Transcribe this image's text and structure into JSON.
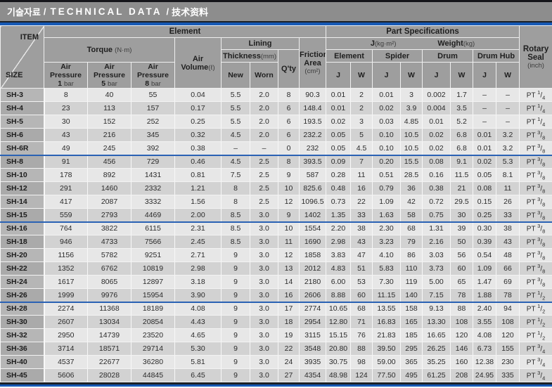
{
  "title": {
    "ko": "기술자료",
    "sep": "/",
    "en": "TECHNICAL DATA",
    "zh": "技术资料"
  },
  "colors": {
    "accent_blue": "#1659b5",
    "header_gray": "#9e9e9e",
    "title_gray": "#8d8d8d",
    "row_light": "#e7e7e7",
    "row_dark": "#d2d2d2"
  },
  "table": {
    "header": {
      "item": "ITEM",
      "size": "SIZE",
      "element_group": "Element",
      "torque": "Torque",
      "torque_unit": "(N·m)",
      "air_pressure": "Air Pressure",
      "bars": [
        "1",
        "5",
        "8"
      ],
      "bar_unit": "bar",
      "air_volume": "Air Volume",
      "air_volume_unit": "(ℓ)",
      "lining": "Lining",
      "thickness": "Thickness",
      "thickness_unit": "(mm)",
      "new": "New",
      "worn": "Worn",
      "qty": "Q'ty",
      "friction_line1": "Friction",
      "friction_line2": "Area",
      "friction_unit": "(cm²)",
      "part_specs": "Part Specifications",
      "j_label": "J",
      "j_unit": "(kg·m²)",
      "weight_label": "Weight",
      "weight_unit": "(kg)",
      "parts": [
        "Element",
        "Spider",
        "Drum",
        "Drum Hub"
      ],
      "j": "J",
      "w": "W",
      "rotary_line1": "Rotary",
      "rotary_line2": "Seal",
      "rotary_unit": "(inch)"
    },
    "rows": [
      {
        "size": "SH-3",
        "values": [
          "8",
          "40",
          "55",
          "0.04",
          "5.5",
          "2.0",
          "8",
          "90.3",
          "0.01",
          "2",
          "0.01",
          "3",
          "0.002",
          "1.7",
          "–",
          "–"
        ],
        "seal": {
          "pt": "PT",
          "num": "1",
          "den": "4"
        },
        "group_end": false
      },
      {
        "size": "SH-4",
        "values": [
          "23",
          "113",
          "157",
          "0.17",
          "5.5",
          "2.0",
          "6",
          "148.4",
          "0.01",
          "2",
          "0.02",
          "3.9",
          "0.004",
          "3.5",
          "–",
          "–"
        ],
        "seal": {
          "pt": "PT",
          "num": "1",
          "den": "4"
        },
        "group_end": false
      },
      {
        "size": "SH-5",
        "values": [
          "30",
          "152",
          "252",
          "0.25",
          "5.5",
          "2.0",
          "6",
          "193.5",
          "0.02",
          "3",
          "0.03",
          "4.85",
          "0.01",
          "5.2",
          "–",
          "–"
        ],
        "seal": {
          "pt": "PT",
          "num": "1",
          "den": "4"
        },
        "group_end": false
      },
      {
        "size": "SH-6",
        "values": [
          "43",
          "216",
          "345",
          "0.32",
          "4.5",
          "2.0",
          "6",
          "232.2",
          "0.05",
          "5",
          "0.10",
          "10.5",
          "0.02",
          "6.8",
          "0.01",
          "3.2"
        ],
        "seal": {
          "pt": "PT",
          "num": "3",
          "den": "8"
        },
        "group_end": false
      },
      {
        "size": "SH-6R",
        "values": [
          "49",
          "245",
          "392",
          "0.38",
          "–",
          "–",
          "0",
          "232",
          "0.05",
          "4.5",
          "0.10",
          "10.5",
          "0.02",
          "6.8",
          "0.01",
          "3.2"
        ],
        "seal": {
          "pt": "PT",
          "num": "3",
          "den": "8"
        },
        "group_end": true
      },
      {
        "size": "SH-8",
        "values": [
          "91",
          "456",
          "729",
          "0.46",
          "4.5",
          "2.5",
          "8",
          "393.5",
          "0.09",
          "7",
          "0.20",
          "15.5",
          "0.08",
          "9.1",
          "0.02",
          "5.3"
        ],
        "seal": {
          "pt": "PT",
          "num": "3",
          "den": "8"
        },
        "group_end": false
      },
      {
        "size": "SH-10",
        "values": [
          "178",
          "892",
          "1431",
          "0.81",
          "7.5",
          "2.5",
          "9",
          "587",
          "0.28",
          "11",
          "0.51",
          "28.5",
          "0.16",
          "11.5",
          "0.05",
          "8.1"
        ],
        "seal": {
          "pt": "PT",
          "num": "3",
          "den": "8"
        },
        "group_end": false
      },
      {
        "size": "SH-12",
        "values": [
          "291",
          "1460",
          "2332",
          "1.21",
          "8",
          "2.5",
          "10",
          "825.6",
          "0.48",
          "16",
          "0.79",
          "36",
          "0.38",
          "21",
          "0.08",
          "11"
        ],
        "seal": {
          "pt": "PT",
          "num": "3",
          "den": "8"
        },
        "group_end": false
      },
      {
        "size": "SH-14",
        "values": [
          "417",
          "2087",
          "3332",
          "1.56",
          "8",
          "2.5",
          "12",
          "1096.5",
          "0.73",
          "22",
          "1.09",
          "42",
          "0.72",
          "29.5",
          "0.15",
          "26"
        ],
        "seal": {
          "pt": "PT",
          "num": "3",
          "den": "8"
        },
        "group_end": false
      },
      {
        "size": "SH-15",
        "values": [
          "559",
          "2793",
          "4469",
          "2.00",
          "8.5",
          "3.0",
          "9",
          "1402",
          "1.35",
          "33",
          "1.63",
          "58",
          "0.75",
          "30",
          "0.25",
          "33"
        ],
        "seal": {
          "pt": "PT",
          "num": "3",
          "den": "8"
        },
        "group_end": true
      },
      {
        "size": "SH-16",
        "values": [
          "764",
          "3822",
          "6115",
          "2.31",
          "8.5",
          "3.0",
          "10",
          "1554",
          "2.20",
          "38",
          "2.30",
          "68",
          "1.31",
          "39",
          "0.30",
          "38"
        ],
        "seal": {
          "pt": "PT",
          "num": "3",
          "den": "8"
        },
        "group_end": false
      },
      {
        "size": "SH-18",
        "values": [
          "946",
          "4733",
          "7566",
          "2.45",
          "8.5",
          "3.0",
          "11",
          "1690",
          "2.98",
          "43",
          "3.23",
          "79",
          "2.16",
          "50",
          "0.39",
          "43"
        ],
        "seal": {
          "pt": "PT",
          "num": "3",
          "den": "8"
        },
        "group_end": false
      },
      {
        "size": "SH-20",
        "values": [
          "1156",
          "5782",
          "9251",
          "2.71",
          "9",
          "3.0",
          "12",
          "1858",
          "3.83",
          "47",
          "4.10",
          "86",
          "3.03",
          "56",
          "0.54",
          "48"
        ],
        "seal": {
          "pt": "PT",
          "num": "3",
          "den": "8"
        },
        "group_end": false
      },
      {
        "size": "SH-22",
        "values": [
          "1352",
          "6762",
          "10819",
          "2.98",
          "9",
          "3.0",
          "13",
          "2012",
          "4.83",
          "51",
          "5.83",
          "110",
          "3.73",
          "60",
          "1.09",
          "66"
        ],
        "seal": {
          "pt": "PT",
          "num": "3",
          "den": "8"
        },
        "group_end": false
      },
      {
        "size": "SH-24",
        "values": [
          "1617",
          "8065",
          "12897",
          "3.18",
          "9",
          "3.0",
          "14",
          "2180",
          "6.00",
          "53",
          "7.30",
          "119",
          "5.00",
          "65",
          "1.47",
          "69"
        ],
        "seal": {
          "pt": "PT",
          "num": "3",
          "den": "8"
        },
        "group_end": false
      },
      {
        "size": "SH-26",
        "values": [
          "1999",
          "9976",
          "15954",
          "3.90",
          "9",
          "3.0",
          "16",
          "2606",
          "8.88",
          "60",
          "11.15",
          "140",
          "7.15",
          "78",
          "1.88",
          "78"
        ],
        "seal": {
          "pt": "PT",
          "num": "1",
          "den": "2"
        },
        "group_end": true
      },
      {
        "size": "SH-28",
        "values": [
          "2274",
          "11368",
          "18189",
          "4.08",
          "9",
          "3.0",
          "17",
          "2774",
          "10.65",
          "68",
          "13.55",
          "158",
          "9.13",
          "88",
          "2.40",
          "94"
        ],
        "seal": {
          "pt": "PT",
          "num": "1",
          "den": "2"
        },
        "group_end": false
      },
      {
        "size": "SH-30",
        "values": [
          "2607",
          "13034",
          "20854",
          "4.43",
          "9",
          "3.0",
          "18",
          "2954",
          "12.80",
          "71",
          "16.83",
          "165",
          "13.30",
          "108",
          "3.55",
          "108"
        ],
        "seal": {
          "pt": "PT",
          "num": "1",
          "den": "2"
        },
        "group_end": false
      },
      {
        "size": "SH-32",
        "values": [
          "2950",
          "14739",
          "23520",
          "4.65",
          "9",
          "3.0",
          "19",
          "3115",
          "15.15",
          "76",
          "21.83",
          "185",
          "16.65",
          "120",
          "4.08",
          "120"
        ],
        "seal": {
          "pt": "PT",
          "num": "1",
          "den": "2"
        },
        "group_end": false
      },
      {
        "size": "SH-36",
        "values": [
          "3714",
          "18571",
          "29714",
          "5.30",
          "9",
          "3.0",
          "22",
          "3548",
          "20.80",
          "88",
          "39.50",
          "295",
          "26.25",
          "146",
          "6.73",
          "155"
        ],
        "seal": {
          "pt": "PT",
          "num": "3",
          "den": "4"
        },
        "group_end": false
      },
      {
        "size": "SH-40",
        "values": [
          "4537",
          "22677",
          "36280",
          "5.81",
          "9",
          "3.0",
          "24",
          "3935",
          "30.75",
          "98",
          "59.00",
          "365",
          "35.25",
          "160",
          "12.38",
          "230"
        ],
        "seal": {
          "pt": "PT",
          "num": "3",
          "den": "4"
        },
        "group_end": false
      },
      {
        "size": "SH-45",
        "values": [
          "5606",
          "28028",
          "44845",
          "6.45",
          "9",
          "3.0",
          "27",
          "4354",
          "48.98",
          "124",
          "77.50",
          "495",
          "61.25",
          "208",
          "24.95",
          "335"
        ],
        "seal": {
          "pt": "PT",
          "num": "3",
          "den": "4"
        },
        "group_end": false
      }
    ]
  }
}
